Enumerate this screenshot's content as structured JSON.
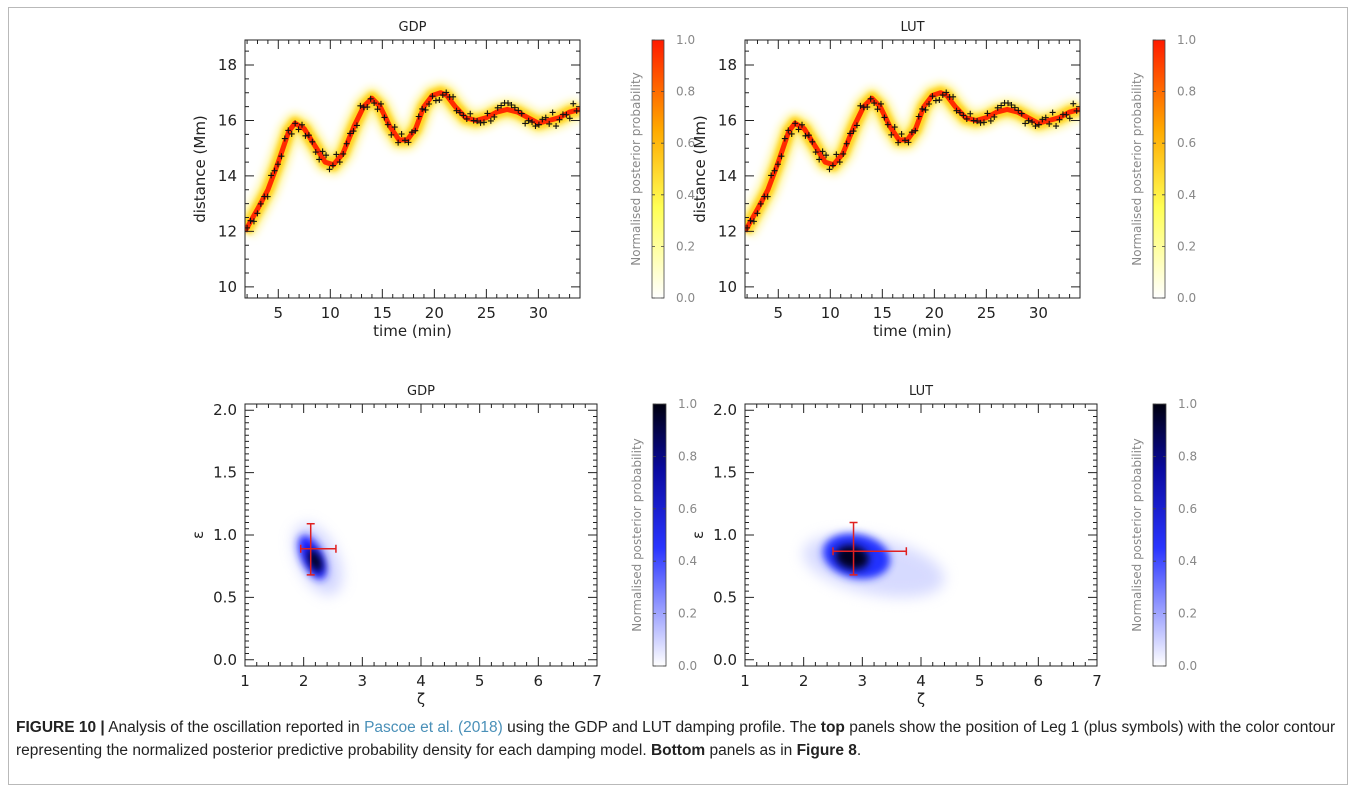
{
  "colorbar": {
    "label": "Normalised posterior probability",
    "ticks": [
      "0.0",
      "0.2",
      "0.4",
      "0.6",
      "0.8",
      "1.0"
    ]
  },
  "panels_top": [
    {
      "title": "GDP",
      "xlabel": "time (min)",
      "ylabel": "distance (Mm)"
    },
    {
      "title": "LUT",
      "xlabel": "time (min)",
      "ylabel": "distance (Mm)"
    }
  ],
  "panels_bottom": [
    {
      "title": "GDP",
      "xlabel": "ζ",
      "ylabel": "ε"
    },
    {
      "title": "LUT",
      "xlabel": "ζ",
      "ylabel": "ε"
    }
  ],
  "caption": {
    "label": "FIGURE 10 |",
    "t1": " Analysis of the oscillation reported in ",
    "ref": "Pascoe et al. (2018)",
    "t2": " using the GDP and LUT damping profile. The ",
    "top": "top",
    "t3": " panels show the position of Leg 1 (plus symbols) with the color contour representing the normalized posterior predictive probability density for each damping model. ",
    "bottom": "Bottom",
    "t4": " panels as in ",
    "fig8": "Figure 8",
    "t5": "."
  },
  "chart_data": [
    {
      "type": "scatter",
      "title": "GDP",
      "xlabel": "time (min)",
      "ylabel": "distance (Mm)",
      "xlim": [
        1.8,
        34
      ],
      "ylim": [
        9.6,
        18.9
      ],
      "xticks": [
        5,
        10,
        15,
        20,
        25,
        30
      ],
      "yticks": [
        10,
        12,
        14,
        16,
        18
      ],
      "model_curve": {
        "x": [
          1.8,
          3,
          4,
          5,
          6,
          6.6,
          7.5,
          8.5,
          9.5,
          10.3,
          11.2,
          12.3,
          13.2,
          14,
          14.8,
          15.7,
          16.6,
          17.4,
          18.2,
          19,
          19.8,
          20.6,
          21.2,
          22,
          23,
          24,
          25,
          26,
          27,
          28,
          29,
          30,
          31,
          32,
          33,
          34
        ],
        "y": [
          12.0,
          12.8,
          13.5,
          14.5,
          15.6,
          15.9,
          15.7,
          15.1,
          14.5,
          14.4,
          14.8,
          15.8,
          16.5,
          16.8,
          16.5,
          15.8,
          15.3,
          15.3,
          15.7,
          16.5,
          16.9,
          17.0,
          16.9,
          16.5,
          16.1,
          16.0,
          16.1,
          16.3,
          16.4,
          16.3,
          16.1,
          15.9,
          16.0,
          16.1,
          16.3,
          16.4
        ]
      },
      "colorbar": {
        "label": "Normalised posterior probability",
        "range": [
          0.0,
          1.0
        ]
      }
    },
    {
      "type": "scatter",
      "title": "LUT",
      "xlabel": "time (min)",
      "ylabel": "distance (Mm)",
      "xlim": [
        1.8,
        34
      ],
      "ylim": [
        9.6,
        18.9
      ],
      "xticks": [
        5,
        10,
        15,
        20,
        25,
        30
      ],
      "yticks": [
        10,
        12,
        14,
        16,
        18
      ],
      "model_curve": {
        "x": [
          1.8,
          3,
          4,
          5,
          6,
          6.6,
          7.5,
          8.5,
          9.5,
          10.3,
          11.2,
          12.3,
          13.2,
          14,
          14.8,
          15.7,
          16.6,
          17.4,
          18.2,
          19,
          19.8,
          20.6,
          21.2,
          22,
          23,
          24,
          25,
          26,
          27,
          28,
          29,
          30,
          31,
          32,
          33,
          34
        ],
        "y": [
          12.0,
          12.8,
          13.5,
          14.5,
          15.6,
          15.9,
          15.7,
          15.1,
          14.5,
          14.4,
          14.8,
          15.8,
          16.5,
          16.8,
          16.5,
          15.8,
          15.3,
          15.3,
          15.7,
          16.5,
          16.9,
          17.0,
          16.9,
          16.5,
          16.1,
          16.0,
          16.1,
          16.3,
          16.4,
          16.3,
          16.1,
          15.9,
          16.0,
          16.1,
          16.3,
          16.4
        ]
      },
      "colorbar": {
        "label": "Normalised posterior probability",
        "range": [
          0.0,
          1.0
        ]
      }
    },
    {
      "type": "heatmap",
      "title": "GDP",
      "xlabel": "ζ",
      "ylabel": "ε",
      "xlim": [
        1,
        7
      ],
      "ylim": [
        -0.05,
        2.05
      ],
      "xticks": [
        1,
        2,
        3,
        4,
        5,
        6,
        7
      ],
      "yticks": [
        0.0,
        0.5,
        1.0,
        1.5,
        2.0
      ],
      "density_peak": {
        "zeta": 2.15,
        "epsilon": 0.82
      },
      "estimate": {
        "zeta": 2.12,
        "epsilon": 0.89,
        "zeta_err": [
          1.95,
          2.55
        ],
        "epsilon_err": [
          0.68,
          1.09
        ]
      },
      "colorbar": {
        "label": "Normalised posterior probability",
        "range": [
          0.0,
          1.0
        ]
      }
    },
    {
      "type": "heatmap",
      "title": "LUT",
      "xlabel": "ζ",
      "ylabel": "ε",
      "xlim": [
        1,
        7
      ],
      "ylim": [
        -0.05,
        2.05
      ],
      "xticks": [
        1,
        2,
        3,
        4,
        5,
        6,
        7
      ],
      "yticks": [
        0.0,
        0.5,
        1.0,
        1.5,
        2.0
      ],
      "density_peak": {
        "zeta": 2.8,
        "epsilon": 0.84
      },
      "estimate": {
        "zeta": 2.85,
        "epsilon": 0.87,
        "zeta_err": [
          2.5,
          3.75
        ],
        "epsilon_err": [
          0.68,
          1.1
        ]
      },
      "colorbar": {
        "label": "Normalised posterior probability",
        "range": [
          0.0,
          1.0
        ]
      }
    }
  ]
}
